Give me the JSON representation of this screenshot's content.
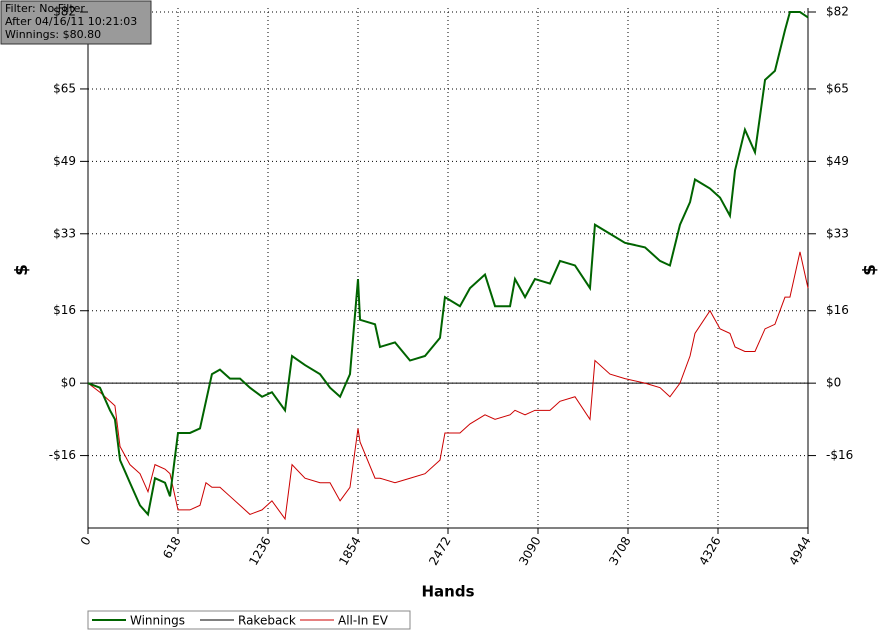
{
  "chart_data": {
    "type": "line",
    "info": [
      "Filter: No Filter",
      "After 04/16/11 10:21:03",
      "Winnings: $80.80"
    ],
    "xlabel": "Hands",
    "ylabel": "$",
    "x": [
      0,
      82,
      151,
      185,
      220,
      288,
      357,
      412,
      460,
      529,
      563,
      618,
      700,
      769,
      810,
      851,
      906,
      975,
      1044,
      1112,
      1195,
      1263,
      1353,
      1401,
      1490,
      1593,
      1662,
      1731,
      1799,
      1854,
      1868,
      1971,
      2005,
      2108,
      2211,
      2314,
      2417,
      2451,
      2554,
      2623,
      2726,
      2795,
      2898,
      2932,
      3001,
      3069,
      3172,
      3241,
      3344,
      3447,
      3481,
      3584,
      3687,
      3825,
      3928,
      3996,
      4065,
      4134,
      4168,
      4271,
      4340,
      4408,
      4443,
      4511,
      4580,
      4649,
      4717,
      4786,
      4820,
      4889,
      4944
    ],
    "series": [
      {
        "name": "Winnings",
        "color": "#006400",
        "width": 2,
        "values": [
          0,
          -1,
          -6,
          -8,
          -17,
          -22,
          -27,
          -29,
          -21,
          -22,
          -25,
          -11,
          -11,
          -10,
          -4,
          2,
          3,
          1,
          1,
          -1,
          -3,
          -2,
          -6,
          6,
          4,
          2,
          -1,
          -3,
          2,
          23,
          14,
          13,
          8,
          9,
          5,
          6,
          10,
          19,
          17,
          21,
          24,
          17,
          17,
          23,
          19,
          23,
          22,
          27,
          26,
          21,
          35,
          33,
          31,
          30,
          27,
          26,
          35,
          40,
          45,
          43,
          41,
          37,
          47,
          56,
          51,
          67,
          69,
          78,
          82,
          82,
          80.8
        ]
      },
      {
        "name": "Rakeback",
        "color": "#000000",
        "width": 1,
        "values": [
          0,
          0,
          0,
          0,
          0,
          0,
          0,
          0,
          0,
          0,
          0,
          0,
          0,
          0,
          0,
          0,
          0,
          0,
          0,
          0,
          0,
          0,
          0,
          0,
          0,
          0,
          0,
          0,
          0,
          0,
          0,
          0,
          0,
          0,
          0,
          0,
          0,
          0,
          0,
          0,
          0,
          0,
          0,
          0,
          0,
          0,
          0,
          0,
          0,
          0,
          0,
          0,
          0,
          0,
          0,
          0,
          0,
          0,
          0,
          0,
          0,
          0,
          0,
          0,
          0,
          0,
          0,
          0,
          0,
          0,
          0
        ]
      },
      {
        "name": "All-In EV",
        "color": "#cc0000",
        "width": 1,
        "values": [
          0,
          -2,
          -4,
          -5,
          -14,
          -18,
          -20,
          -24,
          -18,
          -19,
          -20,
          -28,
          -28,
          -27,
          -22,
          -23,
          -23,
          -25,
          -27,
          -29,
          -28,
          -26,
          -30,
          -18,
          -21,
          -22,
          -22,
          -26,
          -23,
          -10,
          -13,
          -21,
          -21,
          -22,
          -21,
          -20,
          -17,
          -11,
          -11,
          -9,
          -7,
          -8,
          -7,
          -6,
          -7,
          -6,
          -6,
          -4,
          -3,
          -8,
          5,
          2,
          1,
          0,
          -1,
          -3,
          0,
          6,
          11,
          16,
          12,
          11,
          8,
          7,
          7,
          12,
          13,
          19,
          19,
          29,
          21
        ]
      }
    ],
    "xlim": [
      0,
      4944
    ],
    "xticks": [
      0,
      618,
      1236,
      1854,
      2472,
      3090,
      3708,
      4326,
      4944
    ],
    "ylim": [
      -32,
      82
    ],
    "yticks": [
      {
        "value": -16,
        "label": "-$16"
      },
      {
        "value": 0,
        "label": "$0"
      },
      {
        "value": 16,
        "label": "$16"
      },
      {
        "value": 33,
        "label": "$33"
      },
      {
        "value": 49,
        "label": "$49"
      },
      {
        "value": 65,
        "label": "$65"
      },
      {
        "value": 82,
        "label": "$82"
      }
    ],
    "grid": true
  }
}
